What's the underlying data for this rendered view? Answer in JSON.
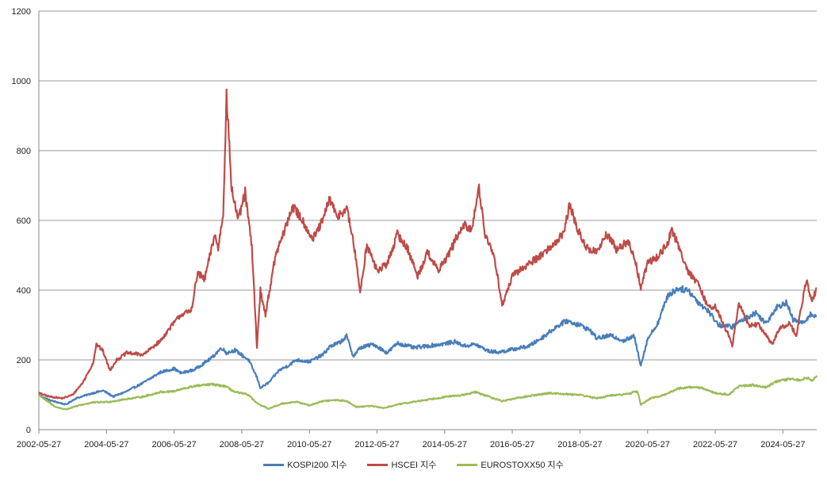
{
  "chart_data": {
    "type": "line",
    "title": "",
    "xlabel": "",
    "ylabel": "",
    "ylim": [
      0,
      1200
    ],
    "yticks": [
      0,
      200,
      400,
      600,
      800,
      1000,
      1200
    ],
    "xlim": [
      2002.4,
      2025.4
    ],
    "xticks": [
      {
        "label": "2002-05-27",
        "t": 2002.4
      },
      {
        "label": "2004-05-27",
        "t": 2004.4
      },
      {
        "label": "2006-05-27",
        "t": 2006.4
      },
      {
        "label": "2008-05-27",
        "t": 2008.4
      },
      {
        "label": "2010-05-27",
        "t": 2010.4
      },
      {
        "label": "2012-05-27",
        "t": 2012.4
      },
      {
        "label": "2014-05-27",
        "t": 2014.4
      },
      {
        "label": "2016-05-27",
        "t": 2016.4
      },
      {
        "label": "2018-05-27",
        "t": 2018.4
      },
      {
        "label": "2020-05-27",
        "t": 2020.4
      },
      {
        "label": "2022-05-27",
        "t": 2022.4
      },
      {
        "label": "2024-05-27",
        "t": 2024.4
      }
    ],
    "grid": true,
    "legend_position": "bottom",
    "series": [
      {
        "name": "KOSPI200 지수",
        "color": "#4a7ebb",
        "points": [
          [
            2002.4,
            100
          ],
          [
            2002.7,
            85
          ],
          [
            2003.2,
            72
          ],
          [
            2003.5,
            90
          ],
          [
            2004.0,
            105
          ],
          [
            2004.3,
            112
          ],
          [
            2004.6,
            95
          ],
          [
            2005.0,
            110
          ],
          [
            2005.5,
            135
          ],
          [
            2006.0,
            165
          ],
          [
            2006.4,
            175
          ],
          [
            2006.6,
            162
          ],
          [
            2007.0,
            172
          ],
          [
            2007.5,
            205
          ],
          [
            2007.8,
            235
          ],
          [
            2007.95,
            220
          ],
          [
            2008.2,
            228
          ],
          [
            2008.6,
            200
          ],
          [
            2008.85,
            150
          ],
          [
            2008.95,
            120
          ],
          [
            2009.2,
            135
          ],
          [
            2009.5,
            170
          ],
          [
            2009.8,
            185
          ],
          [
            2010.0,
            200
          ],
          [
            2010.4,
            195
          ],
          [
            2010.8,
            215
          ],
          [
            2011.0,
            238
          ],
          [
            2011.3,
            250
          ],
          [
            2011.5,
            268
          ],
          [
            2011.7,
            210
          ],
          [
            2011.9,
            235
          ],
          [
            2012.3,
            245
          ],
          [
            2012.7,
            220
          ],
          [
            2013.0,
            248
          ],
          [
            2013.5,
            235
          ],
          [
            2013.9,
            240
          ],
          [
            2014.3,
            245
          ],
          [
            2014.7,
            252
          ],
          [
            2015.0,
            240
          ],
          [
            2015.3,
            245
          ],
          [
            2015.7,
            225
          ],
          [
            2016.0,
            222
          ],
          [
            2016.5,
            232
          ],
          [
            2016.9,
            240
          ],
          [
            2017.3,
            265
          ],
          [
            2017.7,
            295
          ],
          [
            2018.0,
            312
          ],
          [
            2018.4,
            300
          ],
          [
            2018.7,
            285
          ],
          [
            2018.9,
            262
          ],
          [
            2019.3,
            270
          ],
          [
            2019.7,
            255
          ],
          [
            2020.0,
            268
          ],
          [
            2020.2,
            185
          ],
          [
            2020.4,
            260
          ],
          [
            2020.7,
            305
          ],
          [
            2021.0,
            385
          ],
          [
            2021.3,
            405
          ],
          [
            2021.6,
            400
          ],
          [
            2021.9,
            365
          ],
          [
            2022.2,
            340
          ],
          [
            2022.5,
            300
          ],
          [
            2022.9,
            295
          ],
          [
            2023.2,
            315
          ],
          [
            2023.6,
            335
          ],
          [
            2023.9,
            305
          ],
          [
            2024.2,
            350
          ],
          [
            2024.5,
            365
          ],
          [
            2024.7,
            315
          ],
          [
            2025.0,
            305
          ],
          [
            2025.2,
            330
          ],
          [
            2025.4,
            325
          ]
        ]
      },
      {
        "name": "HSCEI 지수",
        "color": "#be4b48",
        "points": [
          [
            2002.4,
            105
          ],
          [
            2002.7,
            95
          ],
          [
            2003.1,
            90
          ],
          [
            2003.4,
            100
          ],
          [
            2003.7,
            135
          ],
          [
            2004.0,
            190
          ],
          [
            2004.1,
            245
          ],
          [
            2004.3,
            225
          ],
          [
            2004.5,
            170
          ],
          [
            2004.7,
            200
          ],
          [
            2005.0,
            220
          ],
          [
            2005.5,
            215
          ],
          [
            2005.8,
            240
          ],
          [
            2006.0,
            255
          ],
          [
            2006.3,
            295
          ],
          [
            2006.6,
            330
          ],
          [
            2006.9,
            340
          ],
          [
            2007.1,
            450
          ],
          [
            2007.3,
            430
          ],
          [
            2007.6,
            560
          ],
          [
            2007.7,
            520
          ],
          [
            2007.85,
            620
          ],
          [
            2007.95,
            960
          ],
          [
            2008.1,
            690
          ],
          [
            2008.3,
            600
          ],
          [
            2008.5,
            680
          ],
          [
            2008.7,
            520
          ],
          [
            2008.8,
            330
          ],
          [
            2008.85,
            235
          ],
          [
            2008.95,
            400
          ],
          [
            2009.1,
            330
          ],
          [
            2009.4,
            500
          ],
          [
            2009.7,
            580
          ],
          [
            2009.9,
            640
          ],
          [
            2010.2,
            600
          ],
          [
            2010.5,
            545
          ],
          [
            2010.8,
            600
          ],
          [
            2011.0,
            665
          ],
          [
            2011.2,
            610
          ],
          [
            2011.5,
            635
          ],
          [
            2011.7,
            540
          ],
          [
            2011.9,
            395
          ],
          [
            2012.1,
            530
          ],
          [
            2012.4,
            455
          ],
          [
            2012.7,
            475
          ],
          [
            2013.0,
            560
          ],
          [
            2013.3,
            520
          ],
          [
            2013.6,
            440
          ],
          [
            2013.9,
            510
          ],
          [
            2014.2,
            455
          ],
          [
            2014.5,
            500
          ],
          [
            2014.8,
            560
          ],
          [
            2015.0,
            585
          ],
          [
            2015.2,
            570
          ],
          [
            2015.4,
            700
          ],
          [
            2015.6,
            560
          ],
          [
            2015.9,
            480
          ],
          [
            2016.1,
            355
          ],
          [
            2016.4,
            440
          ],
          [
            2016.8,
            470
          ],
          [
            2017.1,
            490
          ],
          [
            2017.5,
            520
          ],
          [
            2017.9,
            560
          ],
          [
            2018.1,
            645
          ],
          [
            2018.3,
            580
          ],
          [
            2018.6,
            520
          ],
          [
            2018.9,
            510
          ],
          [
            2019.2,
            560
          ],
          [
            2019.5,
            515
          ],
          [
            2019.8,
            540
          ],
          [
            2020.0,
            500
          ],
          [
            2020.2,
            405
          ],
          [
            2020.4,
            480
          ],
          [
            2020.7,
            495
          ],
          [
            2021.0,
            535
          ],
          [
            2021.1,
            575
          ],
          [
            2021.3,
            530
          ],
          [
            2021.6,
            455
          ],
          [
            2021.9,
            415
          ],
          [
            2022.2,
            350
          ],
          [
            2022.4,
            355
          ],
          [
            2022.6,
            310
          ],
          [
            2022.8,
            270
          ],
          [
            2022.9,
            240
          ],
          [
            2023.1,
            360
          ],
          [
            2023.4,
            300
          ],
          [
            2023.7,
            300
          ],
          [
            2023.9,
            270
          ],
          [
            2024.1,
            245
          ],
          [
            2024.3,
            290
          ],
          [
            2024.6,
            305
          ],
          [
            2024.8,
            270
          ],
          [
            2025.0,
            380
          ],
          [
            2025.1,
            430
          ],
          [
            2025.25,
            365
          ],
          [
            2025.4,
            405
          ]
        ]
      },
      {
        "name": "EUROSTOXX50 지수",
        "color": "#9bbb59",
        "points": [
          [
            2002.4,
            100
          ],
          [
            2002.6,
            85
          ],
          [
            2002.9,
            65
          ],
          [
            2003.2,
            58
          ],
          [
            2003.6,
            70
          ],
          [
            2004.0,
            78
          ],
          [
            2004.5,
            80
          ],
          [
            2005.0,
            88
          ],
          [
            2005.5,
            95
          ],
          [
            2006.0,
            108
          ],
          [
            2006.4,
            110
          ],
          [
            2006.7,
            118
          ],
          [
            2007.0,
            125
          ],
          [
            2007.5,
            130
          ],
          [
            2007.9,
            125
          ],
          [
            2008.2,
            108
          ],
          [
            2008.6,
            100
          ],
          [
            2008.85,
            75
          ],
          [
            2009.2,
            60
          ],
          [
            2009.6,
            75
          ],
          [
            2010.0,
            80
          ],
          [
            2010.4,
            70
          ],
          [
            2010.8,
            82
          ],
          [
            2011.2,
            85
          ],
          [
            2011.5,
            82
          ],
          [
            2011.8,
            65
          ],
          [
            2012.2,
            68
          ],
          [
            2012.6,
            62
          ],
          [
            2013.0,
            72
          ],
          [
            2013.5,
            80
          ],
          [
            2014.0,
            88
          ],
          [
            2014.5,
            95
          ],
          [
            2015.0,
            100
          ],
          [
            2015.3,
            108
          ],
          [
            2015.7,
            95
          ],
          [
            2016.1,
            82
          ],
          [
            2016.5,
            90
          ],
          [
            2017.0,
            98
          ],
          [
            2017.5,
            105
          ],
          [
            2018.0,
            102
          ],
          [
            2018.4,
            100
          ],
          [
            2018.9,
            90
          ],
          [
            2019.3,
            98
          ],
          [
            2019.8,
            102
          ],
          [
            2020.1,
            110
          ],
          [
            2020.2,
            72
          ],
          [
            2020.5,
            90
          ],
          [
            2020.9,
            100
          ],
          [
            2021.3,
            118
          ],
          [
            2021.7,
            122
          ],
          [
            2022.0,
            120
          ],
          [
            2022.4,
            105
          ],
          [
            2022.8,
            100
          ],
          [
            2023.1,
            125
          ],
          [
            2023.5,
            128
          ],
          [
            2023.9,
            122
          ],
          [
            2024.2,
            138
          ],
          [
            2024.6,
            145
          ],
          [
            2024.9,
            142
          ],
          [
            2025.1,
            150
          ],
          [
            2025.25,
            140
          ],
          [
            2025.4,
            155
          ]
        ]
      }
    ]
  }
}
